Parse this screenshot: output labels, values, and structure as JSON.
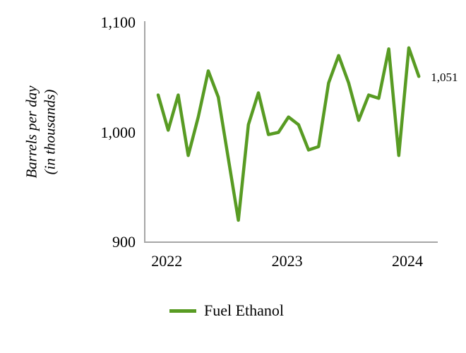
{
  "colors": {
    "line_green": "#589b23",
    "axis_gray": "#a6a6a6",
    "text_black": "#000000"
  },
  "chart_data": {
    "type": "line",
    "title": "",
    "xlabel": "",
    "ylabel": "Barrels per day (in thousands)",
    "ylabel_lines": [
      "Barrels per day",
      "(in thousands)"
    ],
    "ylim": [
      900,
      1100
    ],
    "grid": false,
    "legend_position": "bottom",
    "yticks": [
      {
        "label": "1,100",
        "value": 1100
      },
      {
        "label": "1,000",
        "value": 1000
      },
      {
        "label": "900",
        "value": 900
      }
    ],
    "xticks": [
      {
        "label": "2022",
        "index": 1
      },
      {
        "label": "2023",
        "index": 13
      },
      {
        "label": "2024",
        "index": 25
      }
    ],
    "end_point_label": "1,051",
    "series": [
      {
        "name": "Fuel Ethanol",
        "color": "#589b23",
        "x": [
          "2021-12",
          "2022-01",
          "2022-02",
          "2022-03",
          "2022-04",
          "2022-05",
          "2022-06",
          "2022-07",
          "2022-08",
          "2022-09",
          "2022-10",
          "2022-11",
          "2022-12",
          "2023-01",
          "2023-02",
          "2023-03",
          "2023-04",
          "2023-05",
          "2023-06",
          "2023-07",
          "2023-08",
          "2023-09",
          "2023-10",
          "2023-11",
          "2023-12",
          "2024-01",
          "2024-02"
        ],
        "values": [
          1034,
          1002,
          1034,
          979,
          1014,
          1056,
          1032,
          976,
          920,
          1007,
          1036,
          998,
          1000,
          1014,
          1007,
          984,
          987,
          1045,
          1070,
          1045,
          1011,
          1034,
          1031,
          1076,
          979,
          1077,
          1051
        ]
      }
    ]
  }
}
